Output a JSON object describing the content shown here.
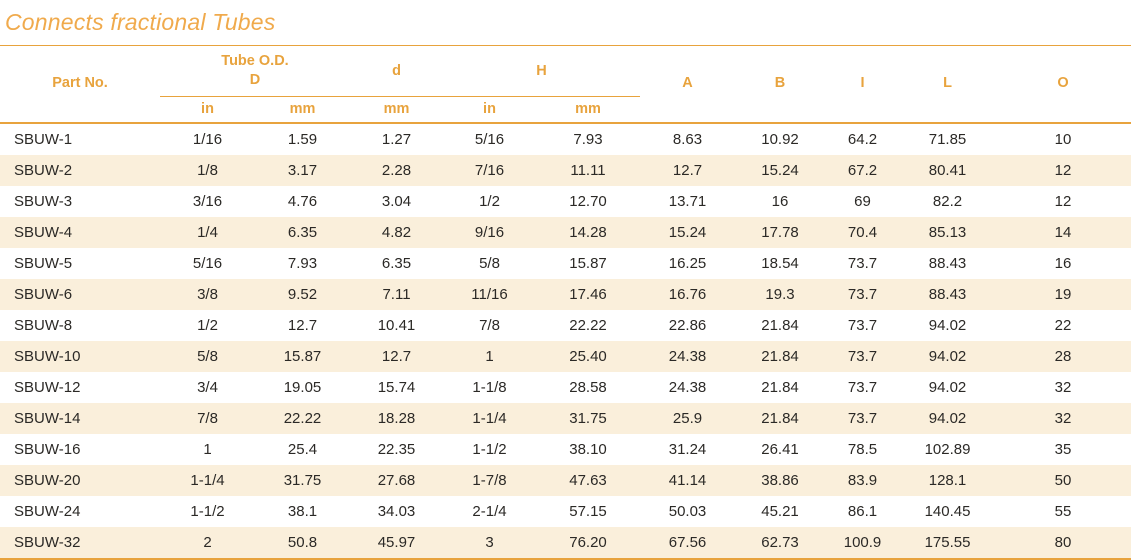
{
  "title": "Connects fractional Tubes",
  "colors": {
    "accent": "#E8A33D",
    "title": "#F0AA4C",
    "stripe": "#FAEFDB",
    "ink": "#2B2926",
    "background": "#FFFFFF"
  },
  "table": {
    "headers": {
      "part_no": "Part No.",
      "tube_od_line1": "Tube O.D.",
      "tube_od_line2": "D",
      "d": "d",
      "h": "H",
      "a": "A",
      "b": "B",
      "i": "I",
      "l": "L",
      "o": "O"
    },
    "units": [
      "in",
      "mm",
      "mm",
      "in",
      "mm"
    ],
    "rows": [
      [
        "SBUW-1",
        "1/16",
        "1.59",
        "1.27",
        "5/16",
        "7.93",
        "8.63",
        "10.92",
        "64.2",
        "71.85",
        "10"
      ],
      [
        "SBUW-2",
        "1/8",
        "3.17",
        "2.28",
        "7/16",
        "11.11",
        "12.7",
        "15.24",
        "67.2",
        "80.41",
        "12"
      ],
      [
        "SBUW-3",
        "3/16",
        "4.76",
        "3.04",
        "1/2",
        "12.70",
        "13.71",
        "16",
        "69",
        "82.2",
        "12"
      ],
      [
        "SBUW-4",
        "1/4",
        "6.35",
        "4.82",
        "9/16",
        "14.28",
        "15.24",
        "17.78",
        "70.4",
        "85.13",
        "14"
      ],
      [
        "SBUW-5",
        "5/16",
        "7.93",
        "6.35",
        "5/8",
        "15.87",
        "16.25",
        "18.54",
        "73.7",
        "88.43",
        "16"
      ],
      [
        "SBUW-6",
        "3/8",
        "9.52",
        "7.11",
        "11/16",
        "17.46",
        "16.76",
        "19.3",
        "73.7",
        "88.43",
        "19"
      ],
      [
        "SBUW-8",
        "1/2",
        "12.7",
        "10.41",
        "7/8",
        "22.22",
        "22.86",
        "21.84",
        "73.7",
        "94.02",
        "22"
      ],
      [
        "SBUW-10",
        "5/8",
        "15.87",
        "12.7",
        "1",
        "25.40",
        "24.38",
        "21.84",
        "73.7",
        "94.02",
        "28"
      ],
      [
        "SBUW-12",
        "3/4",
        "19.05",
        "15.74",
        "1-1/8",
        "28.58",
        "24.38",
        "21.84",
        "73.7",
        "94.02",
        "32"
      ],
      [
        "SBUW-14",
        "7/8",
        "22.22",
        "18.28",
        "1-1/4",
        "31.75",
        "25.9",
        "21.84",
        "73.7",
        "94.02",
        "32"
      ],
      [
        "SBUW-16",
        "1",
        "25.4",
        "22.35",
        "1-1/2",
        "38.10",
        "31.24",
        "26.41",
        "78.5",
        "102.89",
        "35"
      ],
      [
        "SBUW-20",
        "1-1/4",
        "31.75",
        "27.68",
        "1-7/8",
        "47.63",
        "41.14",
        "38.86",
        "83.9",
        "128.1",
        "50"
      ],
      [
        "SBUW-24",
        "1-1/2",
        "38.1",
        "34.03",
        "2-1/4",
        "57.15",
        "50.03",
        "45.21",
        "86.1",
        "140.45",
        "55"
      ],
      [
        "SBUW-32",
        "2",
        "50.8",
        "45.97",
        "3",
        "76.20",
        "67.56",
        "62.73",
        "100.9",
        "175.55",
        "80"
      ]
    ]
  }
}
